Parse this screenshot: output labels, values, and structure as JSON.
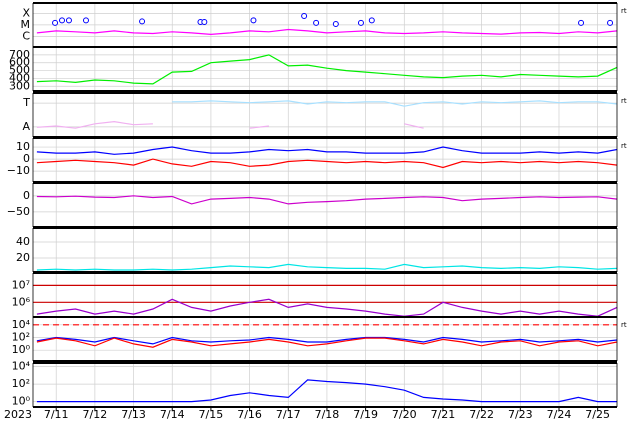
{
  "chart_data": [
    {
      "type": "line",
      "log": true,
      "note": "rt",
      "ylim": [
        1.2e-07,
        0.0008
      ],
      "yticks": [
        {
          "value": 0.0001,
          "label": "X"
        },
        {
          "value": 1e-05,
          "label": "M"
        },
        {
          "value": 1e-06,
          "label": "C"
        }
      ],
      "x": [
        10.5,
        11,
        11.5,
        12,
        12.5,
        13,
        13.5,
        14,
        14.5,
        15,
        15.5,
        16,
        16.5,
        17,
        17.5,
        18,
        18.5,
        19,
        19.5,
        20,
        20.5,
        21,
        21.5,
        22,
        22.5,
        23,
        23.5,
        24,
        24.5,
        25,
        25.5
      ],
      "series": [
        {
          "color": "#ff00ff",
          "values": [
            2e-06,
            3e-06,
            2.5e-06,
            2e-06,
            3e-06,
            2e-06,
            1.8e-06,
            2.5e-06,
            2e-06,
            1.5e-06,
            2e-06,
            3e-06,
            2.5e-06,
            4e-06,
            3e-06,
            2e-06,
            2.5e-06,
            3e-06,
            2e-06,
            1.8e-06,
            2e-06,
            2.5e-06,
            2e-06,
            1.8e-06,
            1.6e-06,
            2e-06,
            2.2e-06,
            1.8e-06,
            2.5e-06,
            2e-06,
            3e-06
          ]
        },
        {
          "color": "#0000ff",
          "marker": "circle",
          "x": [
            10.97,
            11.15,
            11.33,
            11.77,
            13.22,
            14.73,
            14.83,
            16.1,
            17.41,
            17.72,
            18.23,
            18.88,
            19.16,
            24.57,
            25.32
          ],
          "values": [
            1.5e-05,
            2.5e-05,
            2.5e-05,
            2.5e-05,
            2e-05,
            1.8e-05,
            1.8e-05,
            2.5e-05,
            6e-05,
            1.5e-05,
            1.2e-05,
            1.5e-05,
            2.5e-05,
            1.5e-05,
            1.5e-05
          ]
        }
      ]
    },
    {
      "type": "line",
      "ylim": [
        240,
        800
      ],
      "yticks": [
        300,
        400,
        500,
        600,
        700
      ],
      "x": [
        10.5,
        11,
        11.5,
        12,
        12.5,
        13,
        13.5,
        14,
        14.5,
        15,
        15.5,
        16,
        16.5,
        17,
        17.5,
        18,
        18.5,
        19,
        19.5,
        20,
        20.5,
        21,
        21.5,
        22,
        22.5,
        23,
        23.5,
        24,
        24.5,
        25,
        25.5
      ],
      "series": [
        {
          "color": "#00ee00",
          "values": [
            360,
            370,
            350,
            380,
            370,
            340,
            330,
            480,
            490,
            600,
            620,
            640,
            700,
            560,
            570,
            530,
            500,
            480,
            460,
            440,
            420,
            410,
            430,
            440,
            420,
            450,
            440,
            430,
            420,
            430,
            540
          ]
        }
      ]
    },
    {
      "type": "line",
      "note": "rt",
      "ylim": [
        0,
        1
      ],
      "yticks": [
        {
          "value": 0.77,
          "label": "T"
        },
        {
          "value": 0.23,
          "label": "A"
        }
      ],
      "x": [
        10.5,
        11,
        11.5,
        12,
        12.5,
        13,
        13.5,
        14,
        14.5,
        15,
        15.5,
        16,
        16.5,
        17,
        17.5,
        18,
        18.5,
        19,
        19.5,
        20,
        20.5,
        21,
        21.5,
        22,
        22.5,
        23,
        23.5,
        24,
        24.5,
        25,
        25.5
      ],
      "series": [
        {
          "color": "#f0b0f0",
          "values": [
            0.22,
            0.25,
            0.2,
            0.3,
            0.35,
            0.28,
            0.3,
            null,
            null,
            null,
            null,
            0.2,
            0.25,
            null,
            null,
            null,
            null,
            null,
            null,
            0.3,
            0.2,
            null,
            null,
            null,
            null,
            null,
            null,
            null,
            null,
            null,
            null
          ]
        },
        {
          "color": "#a8e0ff",
          "values": [
            null,
            null,
            null,
            null,
            null,
            null,
            null,
            0.8,
            0.8,
            0.82,
            0.8,
            0.78,
            0.8,
            0.82,
            0.75,
            0.8,
            0.78,
            0.8,
            0.8,
            0.7,
            0.78,
            0.8,
            0.75,
            0.8,
            0.78,
            0.8,
            0.82,
            0.78,
            0.8,
            0.8,
            0.75
          ]
        }
      ]
    },
    {
      "type": "line",
      "note": "rt",
      "ylim": [
        -19,
        17.5
      ],
      "yticks": [
        {
          "value": -10,
          "label": "−10"
        },
        0,
        10
      ],
      "x": [
        10.5,
        11,
        11.5,
        12,
        12.5,
        13,
        13.5,
        14,
        14.5,
        15,
        15.5,
        16,
        16.5,
        17,
        17.5,
        18,
        18.5,
        19,
        19.5,
        20,
        20.5,
        21,
        21.5,
        22,
        22.5,
        23,
        23.5,
        24,
        24.5,
        25,
        25.5
      ],
      "series": [
        {
          "color": "#0000ff",
          "values": [
            6,
            5,
            5,
            6,
            4,
            5,
            8,
            10,
            7,
            5,
            5,
            6,
            8,
            7,
            8,
            6,
            6,
            5,
            5,
            5,
            6,
            10,
            7,
            5,
            5,
            5,
            6,
            5,
            6,
            5,
            8
          ]
        },
        {
          "color": "#ff0000",
          "values": [
            -3,
            -2,
            -1,
            -2,
            -3,
            -5,
            0,
            -4,
            -6,
            -2,
            -3,
            -6,
            -5,
            -2,
            -1,
            -2,
            -3,
            -2,
            -3,
            -2,
            -3,
            -7,
            -2,
            -3,
            -2,
            -3,
            -2,
            -3,
            -2,
            -3,
            -5
          ]
        }
      ]
    },
    {
      "type": "line",
      "ylim": [
        -97,
        40
      ],
      "yticks": [
        {
          "value": -50,
          "label": "−50"
        },
        0
      ],
      "x": [
        10.5,
        11,
        11.5,
        12,
        12.5,
        13,
        13.5,
        14,
        14.5,
        15,
        15.5,
        16,
        16.5,
        17,
        17.5,
        18,
        18.5,
        19,
        19.5,
        20,
        20.5,
        21,
        21.5,
        22,
        22.5,
        23,
        23.5,
        24,
        24.5,
        25,
        25.5
      ],
      "series": [
        {
          "color": "#cc00cc",
          "values": [
            -2,
            -3,
            -1,
            -4,
            -5,
            0,
            -5,
            -2,
            -25,
            -10,
            -8,
            -5,
            -10,
            -25,
            -20,
            -18,
            -15,
            -10,
            -8,
            -5,
            -3,
            -5,
            -15,
            -10,
            -8,
            -5,
            -3,
            -5,
            -4,
            -3,
            -10
          ]
        }
      ]
    },
    {
      "type": "line",
      "ylim": [
        2.5,
        57.5
      ],
      "yticks": [
        20,
        40
      ],
      "x": [
        10.5,
        11,
        11.5,
        12,
        12.5,
        13,
        13.5,
        14,
        14.5,
        15,
        15.5,
        16,
        16.5,
        17,
        17.5,
        18,
        18.5,
        19,
        19.5,
        20,
        20.5,
        21,
        21.5,
        22,
        22.5,
        23,
        23.5,
        24,
        24.5,
        25,
        25.5
      ],
      "series": [
        {
          "color": "#00e5e5",
          "values": [
            5,
            6,
            5,
            6,
            5,
            5,
            6,
            5,
            6,
            8,
            10,
            9,
            8,
            12,
            9,
            8,
            7,
            7,
            6,
            12,
            8,
            9,
            10,
            8,
            7,
            8,
            7,
            9,
            8,
            6,
            7
          ]
        }
      ]
    },
    {
      "type": "line",
      "log": true,
      "ylim": [
        135000.0,
        54000000.0
      ],
      "yticks": [
        {
          "value": 1000000.0,
          "label": "10⁶"
        },
        {
          "value": 10000000.0,
          "label": "10⁷"
        }
      ],
      "x": [
        10.5,
        11,
        11.5,
        12,
        12.5,
        13,
        13.5,
        14,
        14.5,
        15,
        15.5,
        16,
        16.5,
        17,
        17.5,
        18,
        18.5,
        19,
        19.5,
        20,
        20.5,
        21,
        21.5,
        22,
        22.5,
        23,
        23.5,
        24,
        24.5,
        25,
        25.5
      ],
      "series": [
        {
          "color": "#cc0000",
          "x": [
            10.4,
            25.5
          ],
          "values": [
            10000000.0,
            10000000.0
          ]
        },
        {
          "color": "#cc0000",
          "x": [
            10.4,
            25.5
          ],
          "values": [
            1000000.0,
            1000000.0
          ]
        },
        {
          "color": "#9900cc",
          "values": [
            200000.0,
            300000.0,
            400000.0,
            200000.0,
            300000.0,
            200000.0,
            400000.0,
            1500000.0,
            500000.0,
            300000.0,
            600000.0,
            1000000.0,
            1500000.0,
            500000.0,
            800000.0,
            500000.0,
            400000.0,
            300000.0,
            200000.0,
            150000.0,
            200000.0,
            1000000.0,
            500000.0,
            300000.0,
            200000.0,
            300000.0,
            200000.0,
            300000.0,
            200000.0,
            150000.0,
            500000.0
          ]
        }
      ]
    },
    {
      "type": "line",
      "log": true,
      "note": "rt",
      "ylim": [
        0.02,
        170000.0
      ],
      "yticks": [
        {
          "value": 1,
          "label": "10⁰"
        },
        {
          "value": 100,
          "label": "10²"
        },
        {
          "value": 10000,
          "label": "10⁴"
        }
      ],
      "x": [
        10.5,
        11,
        11.5,
        12,
        12.5,
        13,
        13.5,
        14,
        14.5,
        15,
        15.5,
        16,
        16.5,
        17,
        17.5,
        18,
        18.5,
        19,
        19.5,
        20,
        20.5,
        21,
        21.5,
        22,
        22.5,
        23,
        23.5,
        24,
        24.5,
        25,
        25.5
      ],
      "series": [
        {
          "color": "#ff0000",
          "dash": true,
          "x": [
            10.4,
            25.5
          ],
          "values": [
            10000,
            10000
          ]
        },
        {
          "color": "#0000ff",
          "values": [
            30,
            100,
            50,
            20,
            100,
            30,
            10,
            100,
            30,
            20,
            30,
            40,
            100,
            50,
            20,
            20,
            50,
            100,
            100,
            50,
            20,
            100,
            50,
            20,
            30,
            50,
            20,
            30,
            50,
            20,
            40
          ]
        },
        {
          "color": "#ff0000",
          "values": [
            20,
            80,
            30,
            5,
            80,
            10,
            3,
            50,
            20,
            5,
            10,
            20,
            50,
            20,
            5,
            10,
            30,
            80,
            80,
            30,
            10,
            50,
            20,
            5,
            20,
            30,
            5,
            20,
            30,
            5,
            20
          ]
        }
      ]
    },
    {
      "type": "line",
      "log": true,
      "ylim": [
        0.24,
        26000
      ],
      "yticks": [
        {
          "value": 1,
          "label": "10⁰"
        },
        {
          "value": 100,
          "label": "10²"
        },
        {
          "value": 10000,
          "label": "10⁴"
        }
      ],
      "xlim": [
        10.4,
        25.5
      ],
      "xticks": [
        {
          "value": 11,
          "label": "7/11"
        },
        {
          "value": 12,
          "label": "7/12"
        },
        {
          "value": 13,
          "label": "7/13"
        },
        {
          "value": 14,
          "label": "7/14"
        },
        {
          "value": 15,
          "label": "7/15"
        },
        {
          "value": 16,
          "label": "7/16"
        },
        {
          "value": 17,
          "label": "7/17"
        },
        {
          "value": 18,
          "label": "7/18"
        },
        {
          "value": 19,
          "label": "7/19"
        },
        {
          "value": 20,
          "label": "7/20"
        },
        {
          "value": 21,
          "label": "7/21"
        },
        {
          "value": 22,
          "label": "7/22"
        },
        {
          "value": 23,
          "label": "7/23"
        },
        {
          "value": 24,
          "label": "7/24"
        },
        {
          "value": 25,
          "label": "7/25"
        }
      ],
      "year_label": "2023",
      "x": [
        10.5,
        11,
        11.5,
        12,
        12.5,
        13,
        13.5,
        14,
        14.5,
        15,
        15.5,
        16,
        16.5,
        17,
        17.5,
        18,
        18.5,
        19,
        19.5,
        20,
        20.5,
        21,
        21.5,
        22,
        22.5,
        23,
        23.5,
        24,
        24.5,
        25,
        25.5
      ],
      "series": [
        {
          "color": "#0000ff",
          "values": [
            1,
            1,
            1,
            1,
            1,
            1,
            1,
            1,
            1,
            1.5,
            5,
            10,
            5,
            3,
            300,
            200,
            150,
            100,
            50,
            20,
            3,
            2,
            1.5,
            1,
            1,
            1,
            1,
            1,
            3,
            1,
            1
          ]
        }
      ]
    }
  ]
}
